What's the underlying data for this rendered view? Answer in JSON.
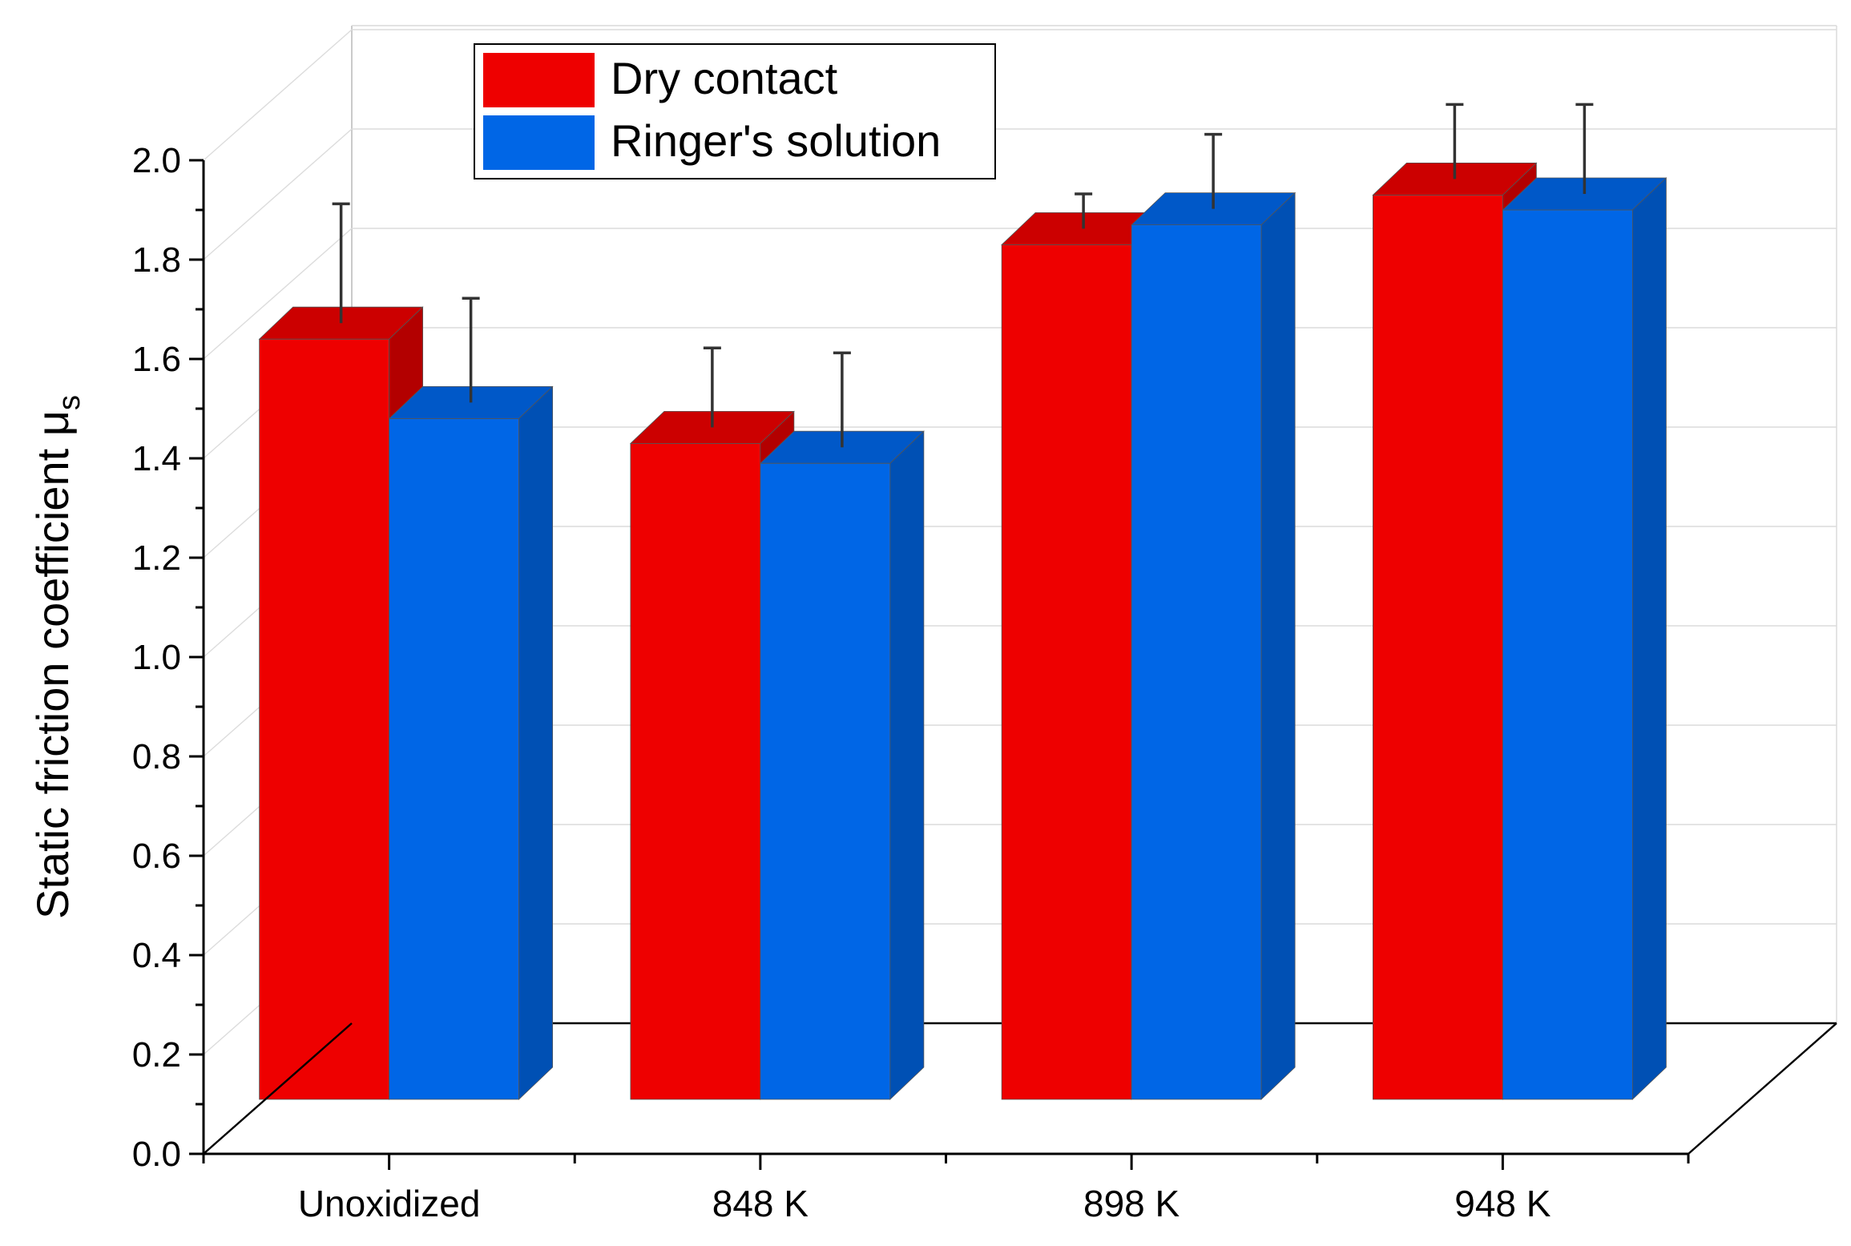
{
  "chart_data": {
    "type": "bar",
    "title": "",
    "xlabel": "",
    "ylabel": "Static friction coefficient μ",
    "ylabel_subscript": "s",
    "ylim": [
      0,
      2
    ],
    "yticks": [
      0.0,
      0.2,
      0.4,
      0.6,
      0.8,
      1.0,
      1.2,
      1.4,
      1.6,
      1.8,
      2.0
    ],
    "ytick_labels": [
      "0.0",
      "0.2",
      "0.4",
      "0.6",
      "0.8",
      "1.0",
      "1.2",
      "1.4",
      "1.6",
      "1.8",
      "2.0"
    ],
    "categories": [
      "Unoxidized",
      "848 K",
      "898 K",
      "948 K"
    ],
    "series": [
      {
        "name": "Dry contact",
        "values": [
          1.64,
          1.43,
          1.83,
          1.93
        ],
        "errors": [
          0.24,
          0.16,
          0.07,
          0.15
        ],
        "color": "#ee0000",
        "top_color": "#cc0000",
        "side_color": "#b30000"
      },
      {
        "name": "Ringer's solution",
        "values": [
          1.48,
          1.39,
          1.87,
          1.9
        ],
        "errors": [
          0.21,
          0.19,
          0.15,
          0.18
        ],
        "color": "#0066e6",
        "top_color": "#0058c8",
        "side_color": "#0050b4"
      }
    ],
    "legend": {
      "position": "top-left",
      "labels": [
        "Dry contact",
        "Ringer's solution"
      ]
    },
    "grid": true,
    "style": "3d"
  }
}
